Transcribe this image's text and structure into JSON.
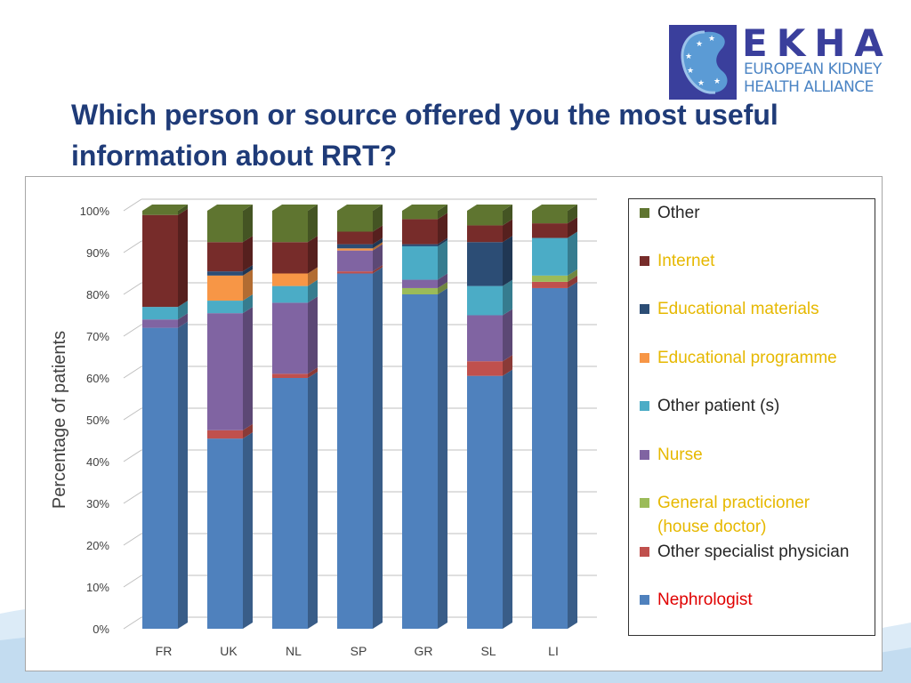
{
  "title": "Which person or source offered you the most useful information about RRT?",
  "logo": {
    "wordmark": "EKHA",
    "line1": "EUROPEAN KIDNEY",
    "line2": "HEALTH ALLIANCE",
    "brand_color": "#3a3f9c",
    "accent_color": "#4b84c4"
  },
  "chart_data": {
    "type": "bar",
    "stacked": true,
    "three_d": true,
    "ylabel": "Percentage of patients",
    "xlabel": "",
    "ylim": [
      0,
      100
    ],
    "y_ticks": [
      "0%",
      "10%",
      "20%",
      "30%",
      "40%",
      "50%",
      "60%",
      "70%",
      "80%",
      "90%",
      "100%"
    ],
    "categories": [
      "FR",
      "UK",
      "NL",
      "SP",
      "GR",
      "SL",
      "LI"
    ],
    "grid": true,
    "legend_position": "right",
    "series": [
      {
        "name": "Nephrologist",
        "color": "#4f81bd",
        "label_color": "#e00000",
        "values": [
          72,
          45.5,
          60,
          85,
          80,
          60.5,
          81.5
        ]
      },
      {
        "name": "Other specialist physician",
        "color": "#c0504d",
        "label_color": "#262626",
        "values": [
          0,
          2,
          1,
          0.5,
          0,
          3.5,
          1.5
        ]
      },
      {
        "name": "General practicioner\n(house doctor)",
        "color": "#9bbb59",
        "label_color": "#e6b800",
        "values": [
          0,
          0,
          0,
          0,
          1.5,
          0,
          1.5
        ]
      },
      {
        "name": "Nurse",
        "color": "#8064a2",
        "label_color": "#e6b800",
        "values": [
          2,
          28,
          17,
          5,
          2,
          11,
          0
        ]
      },
      {
        "name": "Other patient (s)",
        "color": "#4bacc6",
        "label_color": "#262626",
        "values": [
          3,
          3,
          4,
          0,
          8,
          7,
          9
        ]
      },
      {
        "name": "Educational programme",
        "color": "#f79646",
        "label_color": "#e6b800",
        "values": [
          0,
          6,
          3,
          0.5,
          0,
          0,
          0
        ]
      },
      {
        "name": "Educational materials",
        "color": "#2c4d75",
        "label_color": "#e6b800",
        "values": [
          0,
          1,
          0,
          1,
          0.5,
          10.5,
          0
        ]
      },
      {
        "name": "Internet",
        "color": "#772c2a",
        "label_color": "#e6b800",
        "values": [
          22,
          7,
          7.5,
          3,
          6,
          4,
          3.5
        ]
      },
      {
        "name": "Other",
        "color": "#5f7530",
        "label_color": "#262626",
        "values": [
          1,
          7.5,
          7.5,
          5,
          2,
          3.5,
          3
        ]
      }
    ]
  }
}
